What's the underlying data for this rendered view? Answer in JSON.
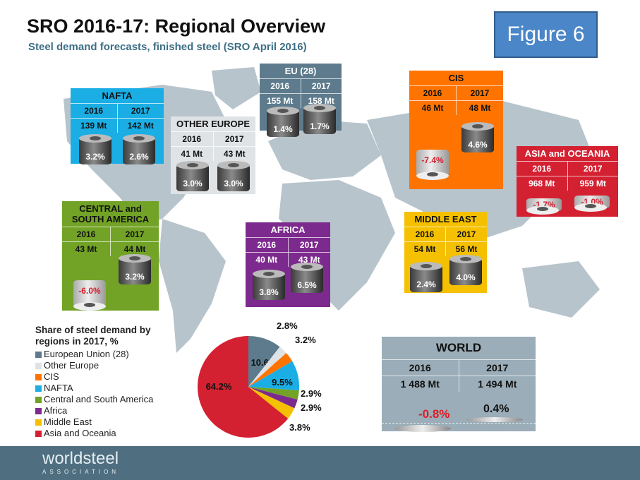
{
  "header": {
    "title": "SRO 2016-17: Regional Overview",
    "subtitle": "Steel demand forecasts, finished steel (SRO April 2016)",
    "figure_label": "Figure 6"
  },
  "colors": {
    "eu": "#5d7b8c",
    "other_europe": "#dfe3e6",
    "cis": "#ff7400",
    "nafta": "#1aaee5",
    "csa": "#72a326",
    "africa": "#7d2a8e",
    "middle_east": "#f4c000",
    "asia": "#d42132",
    "world": "#9aadb8",
    "map": "#b7c4cc",
    "footer": "#4f6f80"
  },
  "regions": [
    {
      "key": "nafta",
      "name": "NAFTA",
      "y1": "2016",
      "y2": "2017",
      "v1": "139 Mt",
      "v2": "142 Mt",
      "p1": "3.2%",
      "p2": "2.6%"
    },
    {
      "key": "other_europe",
      "name": "OTHER EUROPE",
      "y1": "2016",
      "y2": "2017",
      "v1": "41 Mt",
      "v2": "43 Mt",
      "p1": "3.0%",
      "p2": "3.0%"
    },
    {
      "key": "eu",
      "name": "EU (28)",
      "y1": "2016",
      "y2": "2017",
      "v1": "155 Mt",
      "v2": "158 Mt",
      "p1": "1.4%",
      "p2": "1.7%"
    },
    {
      "key": "cis",
      "name": "CIS",
      "y1": "2016",
      "y2": "2017",
      "v1": "46 Mt",
      "v2": "48 Mt",
      "p1": "-7.4%",
      "p2": "4.6%"
    },
    {
      "key": "asia",
      "name": "ASIA and OCEANIA",
      "y1": "2016",
      "y2": "2017",
      "v1": "968 Mt",
      "v2": "959 Mt",
      "p1": "-1.7%",
      "p2": "-1.0%"
    },
    {
      "key": "csa",
      "name": "CENTRAL and SOUTH AMERICA",
      "y1": "2016",
      "y2": "2017",
      "v1": "43 Mt",
      "v2": "44 Mt",
      "p1": "-6.0%",
      "p2": "3.2%"
    },
    {
      "key": "africa",
      "name": "AFRICA",
      "y1": "2016",
      "y2": "2017",
      "v1": "40 Mt",
      "v2": "43 Mt",
      "p1": "3.8%",
      "p2": "6.5%"
    },
    {
      "key": "middle_east",
      "name": "MIDDLE EAST",
      "y1": "2016",
      "y2": "2017",
      "v1": "54 Mt",
      "v2": "56 Mt",
      "p1": "2.4%",
      "p2": "4.0%"
    }
  ],
  "world": {
    "name": "WORLD",
    "y1": "2016",
    "y2": "2017",
    "v1": "1 488 Mt",
    "v2": "1 494 Mt",
    "p1": "-0.8%",
    "p2": "0.4%"
  },
  "chart_data": {
    "type": "pie",
    "title": "Share of steel demand by regions in 2017, %",
    "categories": [
      "European Union (28)",
      "Other Europe",
      "CIS",
      "NAFTA",
      "Central and South America",
      "Africa",
      "Middle East",
      "Asia and Oceania"
    ],
    "values": [
      10.6,
      2.8,
      3.2,
      9.5,
      2.9,
      2.9,
      3.8,
      64.2
    ],
    "labels": [
      "10.6%",
      "2.8%",
      "3.2%",
      "9.5%",
      "2.9%",
      "2.9%",
      "3.8%",
      "64.2%"
    ],
    "colors": [
      "#5d7b8c",
      "#dfe3e6",
      "#ff7400",
      "#1aaee5",
      "#72a326",
      "#7d2a8e",
      "#f4c000",
      "#d42132"
    ],
    "legend": "left"
  },
  "footer": {
    "logo": "worldsteel",
    "logo_sub": "ASSOCIATION"
  }
}
